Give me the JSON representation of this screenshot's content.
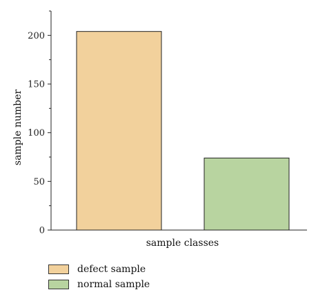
{
  "chart_data": {
    "type": "bar",
    "categories": [
      "defect sample",
      "normal sample"
    ],
    "values": [
      204,
      74
    ],
    "colors": [
      "#f2d19c",
      "#b8d4a0"
    ],
    "xlabel": "sample classes",
    "ylabel": "sample number",
    "ylim": [
      0,
      225
    ],
    "yticks": [
      0,
      50,
      100,
      150,
      200
    ],
    "grid": false,
    "legend_position": "bottom-left"
  },
  "legend": {
    "items": [
      {
        "label": "defect sample",
        "color": "#f2d19c"
      },
      {
        "label": "normal sample",
        "color": "#b8d4a0"
      }
    ]
  }
}
